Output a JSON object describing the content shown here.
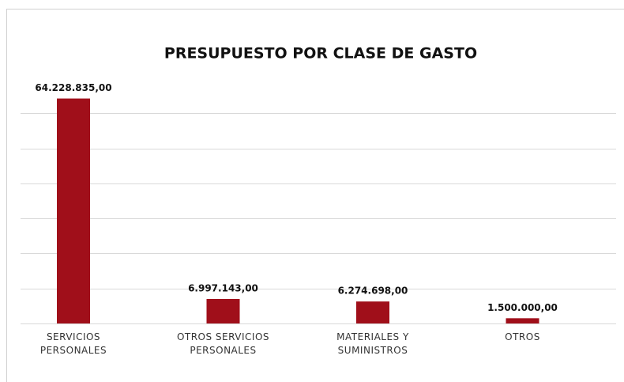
{
  "chart_data": {
    "type": "bar",
    "title": "PRESUPUESTO POR CLASE DE GASTO",
    "categories": [
      "SERVICIOS PERSONALES",
      "OTROS SERVICIOS PERSONALES",
      "MATERIALES Y SUMINISTROS",
      "OTROS"
    ],
    "values": [
      64228835,
      6997143,
      6274698,
      1500000
    ],
    "value_labels": [
      "64.228.835,00",
      "6.997.143,00",
      "6.274.698,00",
      "1.500.000,00"
    ],
    "color": "#a00f1a",
    "ylim": [
      0,
      70000000
    ],
    "yticks": [
      0,
      10000000,
      20000000,
      30000000,
      40000000,
      50000000,
      60000000
    ],
    "grid": true
  }
}
